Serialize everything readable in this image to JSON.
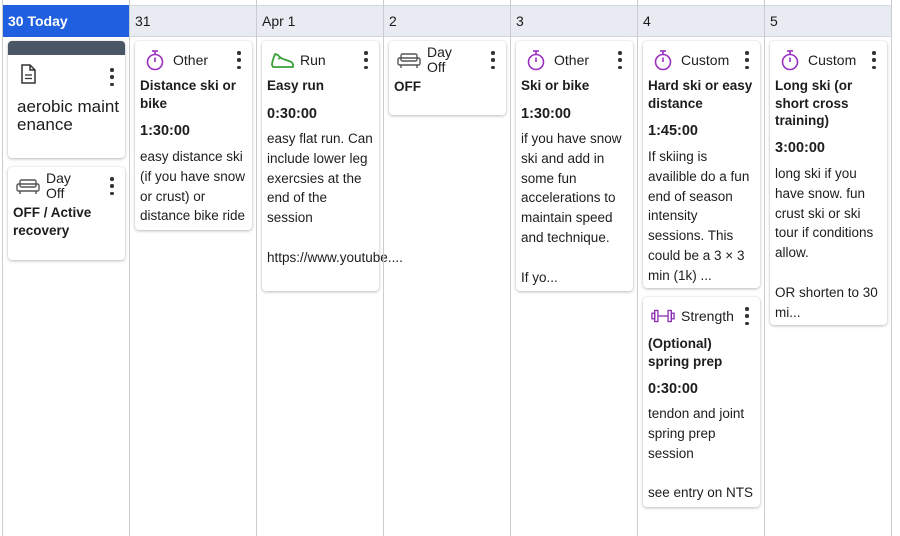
{
  "days": [
    {
      "label": "30 Today",
      "today": true
    },
    {
      "label": "31"
    },
    {
      "label": "Apr 1"
    },
    {
      "label": "2"
    },
    {
      "label": "3"
    },
    {
      "label": "4"
    },
    {
      "label": "5"
    }
  ],
  "cards": {
    "d30_note": {
      "text": "aerobic maintenance",
      "icon": "document-icon"
    },
    "d30_off": {
      "type": "Day Off",
      "title": "OFF / Active recovery",
      "icon": "couch-icon"
    },
    "d31": {
      "type": "Other",
      "title": "Distance ski or bike",
      "duration": "1:30:00",
      "desc": "easy distance ski (if you have snow or crust) or distance bike ride",
      "icon": "stopwatch-icon"
    },
    "apr1": {
      "type": "Run",
      "title": "Easy run",
      "duration": "0:30:00",
      "desc": "easy flat run. Can include lower leg exercsies at the end of the session\n\nhttps://www.youtube....",
      "icon": "shoe-icon"
    },
    "d2": {
      "type": "Day Off",
      "title": "OFF",
      "icon": "couch-icon"
    },
    "d3": {
      "type": "Other",
      "title": "Ski or bike",
      "duration": "1:30:00",
      "desc": "if you have snow ski and add in some fun accelerations to maintain speed and technique.\n\nIf yo...",
      "icon": "stopwatch-icon"
    },
    "d4a": {
      "type": "Custom",
      "title": "Hard ski or easy distance",
      "duration": "1:45:00",
      "desc": "If skiing is availible do a fun end of season intensity sessions. This could be a 3 × 3 min (1k) ...",
      "icon": "stopwatch-icon"
    },
    "d4b": {
      "type": "Strength",
      "title": "(Optional) spring prep",
      "duration": "0:30:00",
      "desc": "tendon and joint spring prep session\n\nsee entry on NTS",
      "icon": "dumbbell-icon"
    },
    "d5": {
      "type": "Custom",
      "title": "Long ski (or short cross training)",
      "duration": "3:00:00",
      "desc": "long ski if you have snow. fun crust ski or ski tour if conditions allow.\n\nOR shorten to 30 mi...",
      "icon": "stopwatch-icon"
    }
  },
  "colors": {
    "today": "#1f5fe0",
    "header_bg": "#e8ecf2",
    "stopwatch": "#9b2fc1",
    "run": "#3aa03a",
    "note_bar": "#4a5566"
  }
}
